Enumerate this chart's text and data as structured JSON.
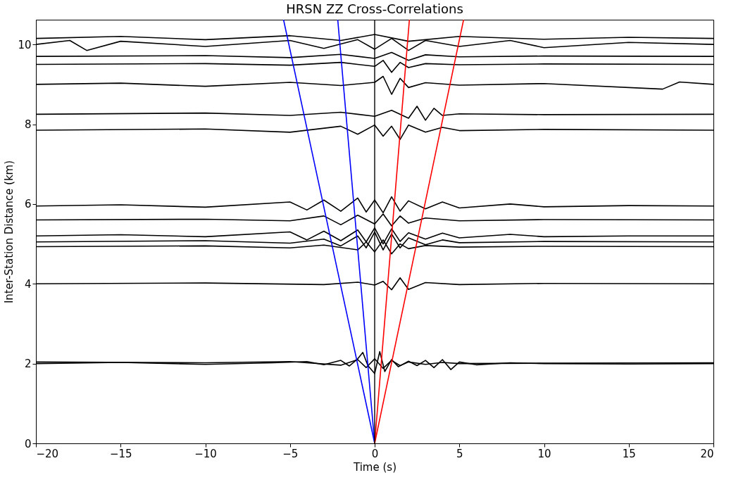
{
  "chart_data": {
    "type": "line",
    "title": "HRSN ZZ Cross-Correlations",
    "xlabel": "Time (s)",
    "ylabel": "Inter-Station Distance (km)",
    "xlim": [
      -20,
      20
    ],
    "ylim": [
      0,
      10.62
    ],
    "xticks": [
      -20,
      -15,
      -10,
      -5,
      0,
      5,
      10,
      15,
      20
    ],
    "yticks": [
      0,
      2,
      4,
      6,
      8,
      10
    ],
    "grid": false,
    "ref_lines": [
      {
        "axis": "x",
        "value": 0,
        "color": "#000000"
      }
    ],
    "marker": "none",
    "line_style": "solid",
    "series": [
      {
        "color": "#000000",
        "x": [
          -20,
          -15,
          -10,
          -6,
          -4,
          -3,
          -2,
          -1.5,
          -1,
          -0.7,
          -0.4,
          0,
          0.3,
          0.6,
          1,
          1.4,
          2,
          2.5,
          3,
          3.5,
          4,
          4.5,
          5,
          6,
          8,
          10,
          15,
          20
        ],
        "values": [
          2.0,
          2.03,
          1.98,
          2.02,
          2.05,
          1.97,
          2.08,
          1.94,
          2.12,
          2.28,
          1.95,
          1.75,
          2.3,
          1.8,
          2.1,
          1.92,
          2.06,
          1.95,
          2.08,
          1.9,
          2.1,
          1.85,
          2.04,
          1.97,
          2.02,
          2.0,
          1.99,
          2.0
        ]
      },
      {
        "color": "#000000",
        "x": [
          -20,
          -10,
          -5,
          -2,
          -1,
          -0.5,
          0,
          0.5,
          1,
          1.5,
          2,
          3,
          4,
          5,
          10,
          20
        ],
        "values": [
          2.04,
          2.02,
          2.05,
          1.96,
          2.1,
          1.9,
          2.12,
          1.88,
          2.08,
          1.95,
          2.04,
          1.98,
          2.03,
          2.0,
          2.01,
          2.02
        ]
      },
      {
        "color": "#000000",
        "x": [
          -20,
          -10,
          -3,
          -1,
          0,
          0.5,
          1,
          1.5,
          2,
          3,
          5,
          10,
          20
        ],
        "values": [
          4.0,
          4.02,
          3.98,
          4.04,
          3.97,
          4.06,
          3.85,
          4.15,
          3.86,
          4.03,
          3.98,
          4.01,
          4.0
        ]
      },
      {
        "color": "#000000",
        "x": [
          -20,
          -10,
          -5,
          -3,
          -1,
          -0.5,
          0,
          0.5,
          1,
          1.5,
          2,
          3,
          5,
          10,
          20
        ],
        "values": [
          4.93,
          4.95,
          4.9,
          4.97,
          4.85,
          5.05,
          4.8,
          5.1,
          4.75,
          5.0,
          4.88,
          4.96,
          4.92,
          4.94,
          4.93
        ]
      },
      {
        "color": "#000000",
        "x": [
          -20,
          -10,
          -5,
          -3,
          -2,
          -1,
          -0.5,
          0,
          0.5,
          1,
          1.5,
          2,
          3,
          4,
          5,
          10,
          20
        ],
        "values": [
          5.05,
          5.08,
          5.02,
          5.12,
          4.95,
          5.2,
          4.9,
          5.3,
          4.85,
          5.25,
          4.9,
          5.15,
          4.98,
          5.1,
          5.03,
          5.06,
          5.05
        ]
      },
      {
        "color": "#000000",
        "x": [
          -20,
          -15,
          -10,
          -5,
          -4,
          -3,
          -2,
          -1,
          -0.5,
          0,
          0.5,
          1,
          1.5,
          2,
          3,
          4,
          5,
          8,
          10,
          15,
          20
        ],
        "values": [
          5.2,
          5.23,
          5.18,
          5.3,
          5.1,
          5.32,
          5.08,
          5.35,
          5.05,
          5.4,
          5.0,
          5.38,
          5.06,
          5.28,
          5.12,
          5.27,
          5.15,
          5.24,
          5.18,
          5.2,
          5.2
        ]
      },
      {
        "color": "#000000",
        "x": [
          -20,
          -10,
          -5,
          -3,
          -2,
          -1,
          0,
          0.5,
          1,
          1.5,
          2,
          3,
          5,
          10,
          20
        ],
        "values": [
          5.6,
          5.62,
          5.58,
          5.7,
          5.48,
          5.72,
          5.5,
          5.75,
          5.45,
          5.7,
          5.52,
          5.65,
          5.58,
          5.61,
          5.6
        ]
      },
      {
        "color": "#000000",
        "x": [
          -20,
          -15,
          -10,
          -5,
          -4,
          -3,
          -2,
          -1,
          -0.5,
          0,
          0.5,
          1,
          1.5,
          2,
          3,
          4,
          5,
          8,
          10,
          15,
          20
        ],
        "values": [
          5.95,
          5.98,
          5.92,
          6.05,
          5.85,
          6.1,
          5.82,
          6.15,
          5.8,
          6.1,
          5.78,
          6.18,
          5.82,
          6.08,
          5.88,
          6.05,
          5.9,
          6.0,
          5.93,
          5.96,
          5.95
        ]
      },
      {
        "color": "#000000",
        "x": [
          -20,
          -10,
          -5,
          -2,
          -1,
          0,
          0.5,
          1,
          1.5,
          2,
          3,
          4,
          5,
          10,
          20
        ],
        "values": [
          7.85,
          7.88,
          7.8,
          7.95,
          7.75,
          7.98,
          7.7,
          7.95,
          7.62,
          7.98,
          7.8,
          7.92,
          7.84,
          7.87,
          7.85
        ]
      },
      {
        "color": "#000000",
        "x": [
          -20,
          -10,
          -5,
          -2,
          0,
          1,
          2,
          2.5,
          3,
          3.5,
          4,
          5,
          10,
          20
        ],
        "values": [
          8.25,
          8.28,
          8.22,
          8.3,
          8.2,
          8.35,
          8.15,
          8.45,
          8.1,
          8.4,
          8.22,
          8.26,
          8.24,
          8.25
        ]
      },
      {
        "color": "#000000",
        "x": [
          -20,
          -15,
          -10,
          -5,
          -2,
          0,
          0.5,
          1,
          1.5,
          2,
          3,
          5,
          10,
          17,
          18,
          20
        ],
        "values": [
          9.0,
          9.03,
          8.95,
          9.05,
          8.97,
          9.05,
          9.2,
          8.75,
          9.15,
          8.92,
          9.04,
          8.98,
          9.02,
          8.88,
          9.06,
          9.0
        ]
      },
      {
        "color": "#000000",
        "x": [
          -20,
          -10,
          -5,
          -2,
          0,
          0.5,
          1,
          1.5,
          2,
          3,
          5,
          10,
          20
        ],
        "values": [
          9.5,
          9.52,
          9.48,
          9.55,
          9.45,
          9.6,
          9.3,
          9.55,
          9.42,
          9.52,
          9.49,
          9.51,
          9.5
        ]
      },
      {
        "color": "#000000",
        "x": [
          -20,
          -10,
          -5,
          -2,
          0,
          1,
          2,
          3,
          5,
          10,
          20
        ],
        "values": [
          9.7,
          9.72,
          9.67,
          9.75,
          9.65,
          9.8,
          9.6,
          9.74,
          9.69,
          9.71,
          9.7
        ]
      },
      {
        "color": "#000000",
        "x": [
          -20,
          -18,
          -17,
          -15,
          -10,
          -5,
          -3,
          -1,
          0,
          1,
          2,
          3,
          5,
          8,
          10,
          15,
          20
        ],
        "values": [
          10.0,
          10.1,
          9.85,
          10.08,
          9.95,
          10.1,
          9.9,
          10.12,
          9.88,
          10.15,
          9.85,
          10.1,
          9.95,
          10.1,
          9.92,
          10.05,
          10.0
        ]
      },
      {
        "color": "#000000",
        "x": [
          -20,
          -15,
          -10,
          -5,
          -2,
          0,
          2,
          5,
          10,
          15,
          20
        ],
        "values": [
          10.15,
          10.2,
          10.12,
          10.22,
          10.1,
          10.25,
          10.08,
          10.2,
          10.13,
          10.18,
          10.15
        ]
      },
      {
        "color": "#0000ff",
        "x": [
          0,
          -5.38
        ],
        "values": [
          0,
          10.62
        ]
      },
      {
        "color": "#0000ff",
        "x": [
          0,
          -2.18
        ],
        "values": [
          0,
          10.62
        ]
      },
      {
        "color": "#ff0000",
        "x": [
          0,
          2.05
        ],
        "values": [
          0,
          10.62
        ]
      },
      {
        "color": "#ff0000",
        "x": [
          0,
          5.25
        ],
        "values": [
          0,
          10.62
        ]
      }
    ]
  }
}
